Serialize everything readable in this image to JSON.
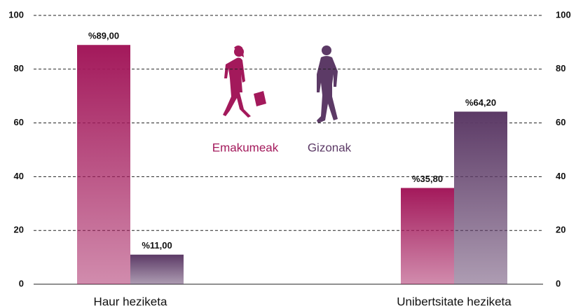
{
  "chart_data": {
    "type": "bar",
    "categories": [
      "Haur heziketa",
      "Unibertsitate heziketa"
    ],
    "series": [
      {
        "name": "Emakumeak",
        "color": "#a3195b",
        "values": [
          89,
          35.8
        ],
        "value_labels": [
          "%89,00",
          "%35,80"
        ]
      },
      {
        "name": "Gizonak",
        "color": "#5c3a66",
        "values": [
          11,
          64.2
        ],
        "value_labels": [
          "%11,00",
          "%64,20"
        ]
      }
    ],
    "ylim": [
      0,
      100
    ],
    "yticks": [
      0,
      20,
      40,
      60,
      80,
      100
    ],
    "y2lim": [
      0,
      100
    ],
    "y2ticks": [
      0,
      20,
      40,
      60,
      80,
      100
    ],
    "grid": true
  }
}
